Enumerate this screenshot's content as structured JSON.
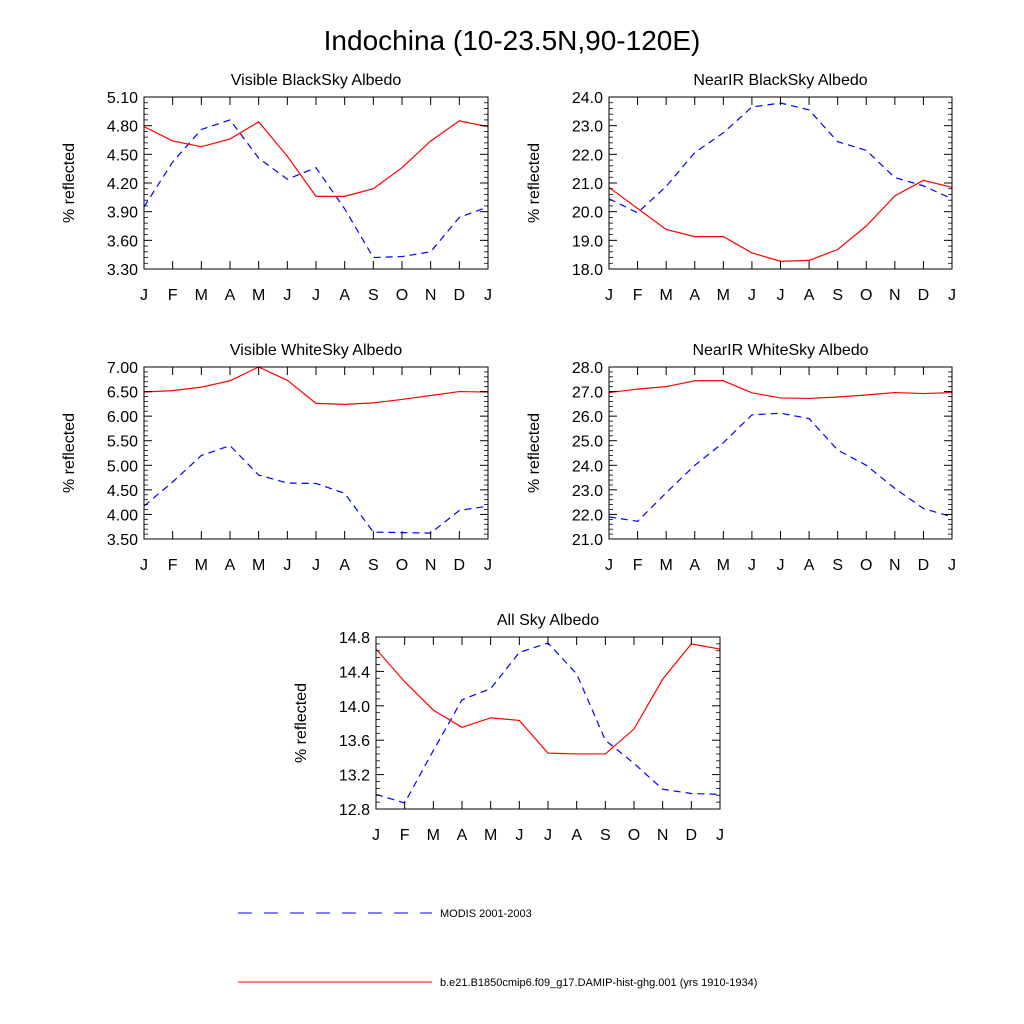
{
  "title": "Indochina (10-23.5N,90-120E)",
  "colors": {
    "modis": "#0000ff",
    "model": "#ff0000"
  },
  "legend": {
    "modis_label": "MODIS 2001-2003",
    "model_label": "b.e21.B1850cmip6.f09_g17.DAMIP-hist-ghg.001 (yrs 1910-1934)"
  },
  "chart_data": [
    {
      "type": "line",
      "title": "Visible BlackSky Albedo",
      "ylabel": "% reflected",
      "categories": [
        "J",
        "F",
        "M",
        "A",
        "M",
        "J",
        "J",
        "A",
        "S",
        "O",
        "N",
        "D",
        "J"
      ],
      "ylim": [
        3.3,
        5.1
      ],
      "yticks": [
        "3.30",
        "3.60",
        "3.90",
        "4.20",
        "4.50",
        "4.80",
        "5.10"
      ],
      "series": [
        {
          "name": "MODIS 2001-2003",
          "style": "dashed",
          "color": "#0000ff",
          "values": [
            3.95,
            4.42,
            4.76,
            4.86,
            4.46,
            4.24,
            4.36,
            3.93,
            3.42,
            3.43,
            3.48,
            3.84,
            3.95
          ]
        },
        {
          "name": "b.e21.B1850cmip6.f09_g17.DAMIP-hist-ghg.001 (yrs 1910-1934)",
          "style": "solid",
          "color": "#ff0000",
          "values": [
            4.79,
            4.64,
            4.58,
            4.66,
            4.84,
            4.48,
            4.06,
            4.06,
            4.14,
            4.36,
            4.64,
            4.85,
            4.79
          ]
        }
      ]
    },
    {
      "type": "line",
      "title": "NearIR BlackSky Albedo",
      "ylabel": "% reflected",
      "categories": [
        "J",
        "F",
        "M",
        "A",
        "M",
        "J",
        "J",
        "A",
        "S",
        "O",
        "N",
        "D",
        "J"
      ],
      "ylim": [
        18.0,
        24.0
      ],
      "yticks": [
        "18.0",
        "19.0",
        "20.0",
        "21.0",
        "22.0",
        "23.0",
        "24.0"
      ],
      "series": [
        {
          "name": "MODIS 2001-2003",
          "style": "dashed",
          "color": "#0000ff",
          "values": [
            20.45,
            19.96,
            20.88,
            22.06,
            22.75,
            23.65,
            23.79,
            23.55,
            22.44,
            22.14,
            21.19,
            20.9,
            20.45
          ]
        },
        {
          "name": "b.e21.B1850cmip6.f09_g17.DAMIP-hist-ghg.001 (yrs 1910-1934)",
          "style": "solid",
          "color": "#ff0000",
          "values": [
            20.85,
            20.11,
            19.38,
            19.13,
            19.13,
            18.56,
            18.27,
            18.3,
            18.68,
            19.5,
            20.55,
            21.09,
            20.85
          ]
        }
      ]
    },
    {
      "type": "line",
      "title": "Visible WhiteSky Albedo",
      "ylabel": "% reflected",
      "categories": [
        "J",
        "F",
        "M",
        "A",
        "M",
        "J",
        "J",
        "A",
        "S",
        "O",
        "N",
        "D",
        "J"
      ],
      "ylim": [
        3.5,
        7.0
      ],
      "yticks": [
        "3.50",
        "4.00",
        "4.50",
        "5.00",
        "5.50",
        "6.00",
        "6.50",
        "7.00"
      ],
      "series": [
        {
          "name": "MODIS 2001-2003",
          "style": "dashed",
          "color": "#0000ff",
          "values": [
            4.17,
            4.66,
            5.2,
            5.4,
            4.8,
            4.64,
            4.63,
            4.43,
            3.64,
            3.63,
            3.62,
            4.08,
            4.17
          ]
        },
        {
          "name": "b.e21.B1850cmip6.f09_g17.DAMIP-hist-ghg.001 (yrs 1910-1934)",
          "style": "solid",
          "color": "#ff0000",
          "values": [
            6.49,
            6.52,
            6.59,
            6.72,
            7.0,
            6.73,
            6.26,
            6.24,
            6.27,
            6.34,
            6.42,
            6.5,
            6.49
          ]
        }
      ]
    },
    {
      "type": "line",
      "title": "NearIR WhiteSky Albedo",
      "ylabel": "% reflected",
      "categories": [
        "J",
        "F",
        "M",
        "A",
        "M",
        "J",
        "J",
        "A",
        "S",
        "O",
        "N",
        "D",
        "J"
      ],
      "ylim": [
        21.0,
        28.0
      ],
      "yticks": [
        "21.0",
        "22.0",
        "23.0",
        "24.0",
        "25.0",
        "26.0",
        "27.0",
        "28.0"
      ],
      "series": [
        {
          "name": "MODIS 2001-2003",
          "style": "dashed",
          "color": "#0000ff",
          "values": [
            21.9,
            21.72,
            22.88,
            24.0,
            24.92,
            26.05,
            26.12,
            25.9,
            24.62,
            24.0,
            23.06,
            22.24,
            21.9
          ]
        },
        {
          "name": "b.e21.B1850cmip6.f09_g17.DAMIP-hist-ghg.001 (yrs 1910-1934)",
          "style": "solid",
          "color": "#ff0000",
          "values": [
            26.96,
            27.1,
            27.2,
            27.44,
            27.44,
            26.95,
            26.74,
            26.72,
            26.78,
            26.86,
            26.96,
            26.92,
            26.96
          ]
        }
      ]
    },
    {
      "type": "line",
      "title": "All Sky Albedo",
      "ylabel": "% reflected",
      "categories": [
        "J",
        "F",
        "M",
        "A",
        "M",
        "J",
        "J",
        "A",
        "S",
        "O",
        "N",
        "D",
        "J"
      ],
      "ylim": [
        12.8,
        14.8
      ],
      "yticks": [
        "12.8",
        "13.2",
        "13.6",
        "14.0",
        "14.4",
        "14.8"
      ],
      "series": [
        {
          "name": "MODIS 2001-2003",
          "style": "dashed",
          "color": "#0000ff",
          "values": [
            12.97,
            12.87,
            13.48,
            14.07,
            14.2,
            14.62,
            14.73,
            14.37,
            13.6,
            13.33,
            13.03,
            12.98,
            12.97
          ]
        },
        {
          "name": "b.e21.B1850cmip6.f09_g17.DAMIP-hist-ghg.001 (yrs 1910-1934)",
          "style": "solid",
          "color": "#ff0000",
          "values": [
            14.66,
            14.28,
            13.95,
            13.75,
            13.86,
            13.83,
            13.45,
            13.44,
            13.44,
            13.73,
            14.31,
            14.72,
            14.66
          ]
        }
      ]
    }
  ]
}
